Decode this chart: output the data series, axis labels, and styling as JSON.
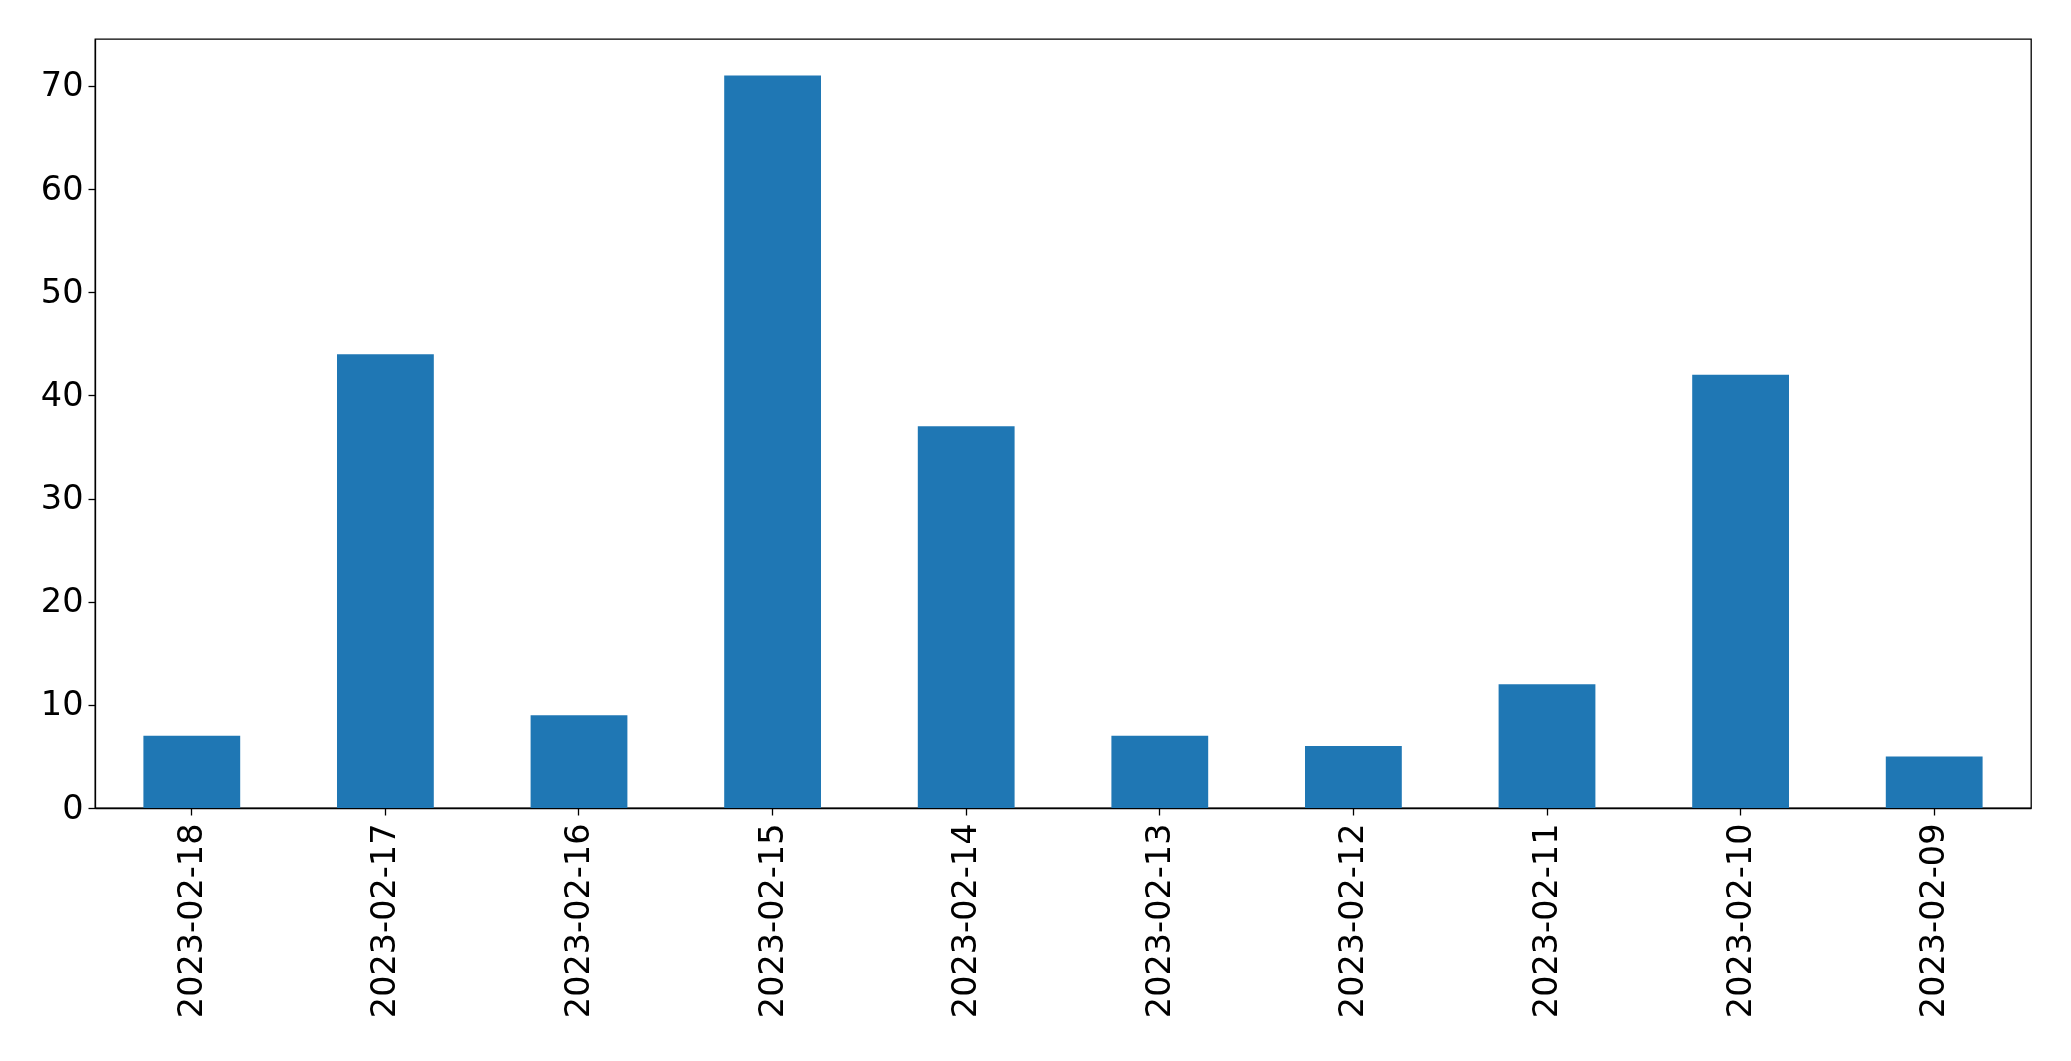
{
  "chart_data": {
    "type": "bar",
    "categories": [
      "2023-02-18",
      "2023-02-17",
      "2023-02-16",
      "2023-02-15",
      "2023-02-14",
      "2023-02-13",
      "2023-02-12",
      "2023-02-11",
      "2023-02-10",
      "2023-02-09"
    ],
    "values": [
      7,
      44,
      9,
      71,
      37,
      7,
      6,
      12,
      42,
      5
    ],
    "color": "#1f77b4",
    "ylim": [
      0,
      74.55
    ],
    "yticks": [
      0,
      10,
      20,
      30,
      40,
      50,
      60,
      70
    ]
  }
}
